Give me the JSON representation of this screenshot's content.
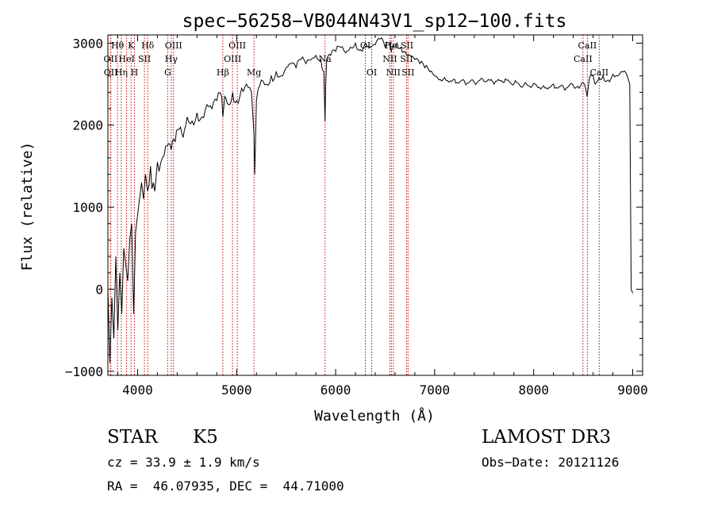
{
  "chart_data": {
    "type": "line",
    "title": "spec−56258−VB044N43V1_sp12−100.fits",
    "xlabel": "Wavelength (Å)",
    "ylabel": "Flux (relative)",
    "xlim": [
      3700,
      9100
    ],
    "ylim": [
      -1050,
      3100
    ],
    "x_ticks": [
      4000,
      5000,
      6000,
      7000,
      8000,
      9000
    ],
    "x_tick_labels": [
      "4000",
      "5000",
      "6000",
      "7000",
      "8000",
      "9000"
    ],
    "y_ticks": [
      -1000,
      0,
      1000,
      2000,
      3000
    ],
    "y_tick_labels": [
      "−1000",
      "0",
      "1000",
      "2000",
      "3000"
    ],
    "grid": false,
    "series": [
      {
        "name": "flux",
        "color": "#000000",
        "x": [
          3700,
          3720,
          3740,
          3760,
          3780,
          3800,
          3820,
          3840,
          3860,
          3880,
          3900,
          3920,
          3940,
          3960,
          3980,
          4000,
          4020,
          4040,
          4060,
          4080,
          4100,
          4130,
          4160,
          4200,
          4250,
          4300,
          4340,
          4380,
          4420,
          4460,
          4500,
          4550,
          4600,
          4650,
          4700,
          4750,
          4800,
          4850,
          4861,
          4880,
          4920,
          4960,
          5000,
          5050,
          5100,
          5150,
          5175,
          5183,
          5200,
          5250,
          5300,
          5350,
          5400,
          5450,
          5500,
          5550,
          5600,
          5650,
          5700,
          5750,
          5800,
          5850,
          5880,
          5893,
          5900,
          5910,
          5950,
          6000,
          6050,
          6100,
          6150,
          6200,
          6250,
          6300,
          6350,
          6400,
          6450,
          6500,
          6540,
          6563,
          6580,
          6620,
          6660,
          6700,
          6750,
          6800,
          6850,
          6900,
          6950,
          7000,
          7100,
          7200,
          7300,
          7400,
          7500,
          7600,
          7700,
          7800,
          7900,
          8000,
          8100,
          8200,
          8300,
          8400,
          8460,
          8500,
          8540,
          8560,
          8600,
          8620,
          8660,
          8700,
          8750,
          8800,
          8850,
          8900,
          8950,
          8970,
          8985,
          9000
        ],
        "y": [
          0,
          -900,
          -100,
          -600,
          400,
          -500,
          200,
          -300,
          500,
          300,
          100,
          600,
          800,
          -300,
          700,
          900,
          1100,
          1300,
          1100,
          1400,
          1200,
          1500,
          1300,
          1550,
          1600,
          1750,
          1700,
          1800,
          1950,
          1850,
          2100,
          2050,
          2150,
          2100,
          2250,
          2200,
          2300,
          2350,
          2100,
          2350,
          2250,
          2400,
          2300,
          2450,
          2500,
          2400,
          1900,
          1400,
          2300,
          2550,
          2500,
          2600,
          2650,
          2600,
          2700,
          2750,
          2700,
          2800,
          2750,
          2800,
          2850,
          2800,
          2650,
          2050,
          2500,
          2800,
          2850,
          2900,
          2950,
          2880,
          2950,
          3000,
          2920,
          3000,
          2950,
          2980,
          3050,
          2950,
          3000,
          2900,
          2980,
          3000,
          2950,
          2900,
          2850,
          2800,
          2750,
          2700,
          2650,
          2600,
          2580,
          2560,
          2540,
          2520,
          2530,
          2500,
          2520,
          2500,
          2490,
          2510,
          2480,
          2500,
          2470,
          2480,
          2450,
          2520,
          2350,
          2550,
          2600,
          2500,
          2580,
          2600,
          2550,
          2620,
          2600,
          2650,
          2580,
          2500,
          0,
          -50
        ]
      }
    ],
    "line_labels": [
      {
        "label": "Hθ",
        "x": 3797,
        "row": 1
      },
      {
        "label": "OII",
        "x": 3727,
        "row": 2
      },
      {
        "label": "OII",
        "x": 3729,
        "row": 3
      },
      {
        "label": "K",
        "x": 3934,
        "row": 1
      },
      {
        "label": "HeI",
        "x": 3889,
        "row": 2
      },
      {
        "label": "Hη",
        "x": 3835,
        "row": 3
      },
      {
        "label": "Hδ",
        "x": 4102,
        "row": 1
      },
      {
        "label": "SII",
        "x": 4069,
        "row": 2
      },
      {
        "label": "H",
        "x": 3968,
        "row": 3
      },
      {
        "label": "OIII",
        "x": 4363,
        "row": 1
      },
      {
        "label": "Hγ",
        "x": 4340,
        "row": 2
      },
      {
        "label": "G",
        "x": 4304,
        "row": 3
      },
      {
        "label": "OIII",
        "x": 5007,
        "row": 1
      },
      {
        "label": "OIII",
        "x": 4959,
        "row": 2
      },
      {
        "label": "Hβ",
        "x": 4861,
        "row": 3
      },
      {
        "label": "Mg",
        "x": 5175,
        "row": 3
      },
      {
        "label": "Na",
        "x": 5893,
        "row": 2
      },
      {
        "label": "OI",
        "x": 6300,
        "row": 1
      },
      {
        "label": "OI",
        "x": 6364,
        "row": 3
      },
      {
        "label": "Hα",
        "x": 6563,
        "row": 1
      },
      {
        "label": "SII",
        "x": 6720,
        "row": 1
      },
      {
        "label": "NII",
        "x": 6548,
        "row": 2
      },
      {
        "label": "SII",
        "x": 6716,
        "row": 2
      },
      {
        "label": "NII",
        "x": 6583,
        "row": 3
      },
      {
        "label": "SII",
        "x": 6731,
        "row": 3
      },
      {
        "label": "CaII",
        "x": 8542,
        "row": 1
      },
      {
        "label": "CaII",
        "x": 8498,
        "row": 2
      },
      {
        "label": "CaII",
        "x": 8662,
        "row": 3
      }
    ],
    "line_markers": [
      3727,
      3729,
      3797,
      3835,
      3889,
      3934,
      3968,
      4069,
      4102,
      4304,
      4340,
      4363,
      4861,
      4959,
      5007,
      5175,
      5893,
      6300,
      6364,
      6548,
      6563,
      6583,
      6716,
      6731,
      8498,
      8542,
      8662
    ],
    "marker_color": "#cc0000"
  },
  "footer": {
    "class_label": "STAR",
    "subclass_label": "K5",
    "survey_label": "LAMOST DR3",
    "cz_text": "cz = 33.9 ± 1.9 km/s",
    "obs_date_text": "Obs−Date: 20121126",
    "coords_text": "RA =  46.07935, DEC =  44.71000"
  }
}
